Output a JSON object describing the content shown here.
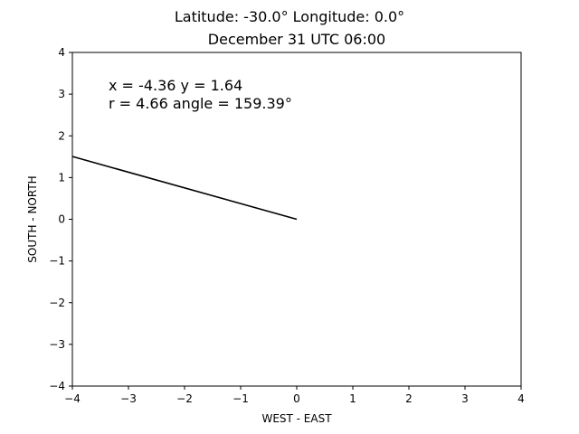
{
  "chart_data": {
    "type": "line",
    "title": "Latitude: -30.0° Longitude: 0.0°",
    "subtitle": "December 31 UTC 06:00",
    "xlabel": "WEST - EAST",
    "ylabel": "SOUTH - NORTH",
    "xlim": [
      -4,
      4
    ],
    "ylim": [
      -4,
      4
    ],
    "xticks": [
      -4,
      -3,
      -2,
      -1,
      0,
      1,
      2,
      3,
      4
    ],
    "yticks": [
      -4,
      -3,
      -2,
      -1,
      0,
      1,
      2,
      3,
      4
    ],
    "xtick_labels": [
      "−4",
      "−3",
      "−2",
      "−1",
      "0",
      "1",
      "2",
      "3",
      "4"
    ],
    "ytick_labels": [
      "−4",
      "−3",
      "−2",
      "−1",
      "0",
      "1",
      "2",
      "3",
      "4"
    ],
    "grid": false,
    "series": [
      {
        "x": [
          0,
          -4.36
        ],
        "y": [
          0,
          1.64
        ],
        "color": "#000000"
      }
    ],
    "annotations": [
      "x = -4.36 y = 1.64",
      "r = 4.66 angle = 159.39°"
    ]
  }
}
